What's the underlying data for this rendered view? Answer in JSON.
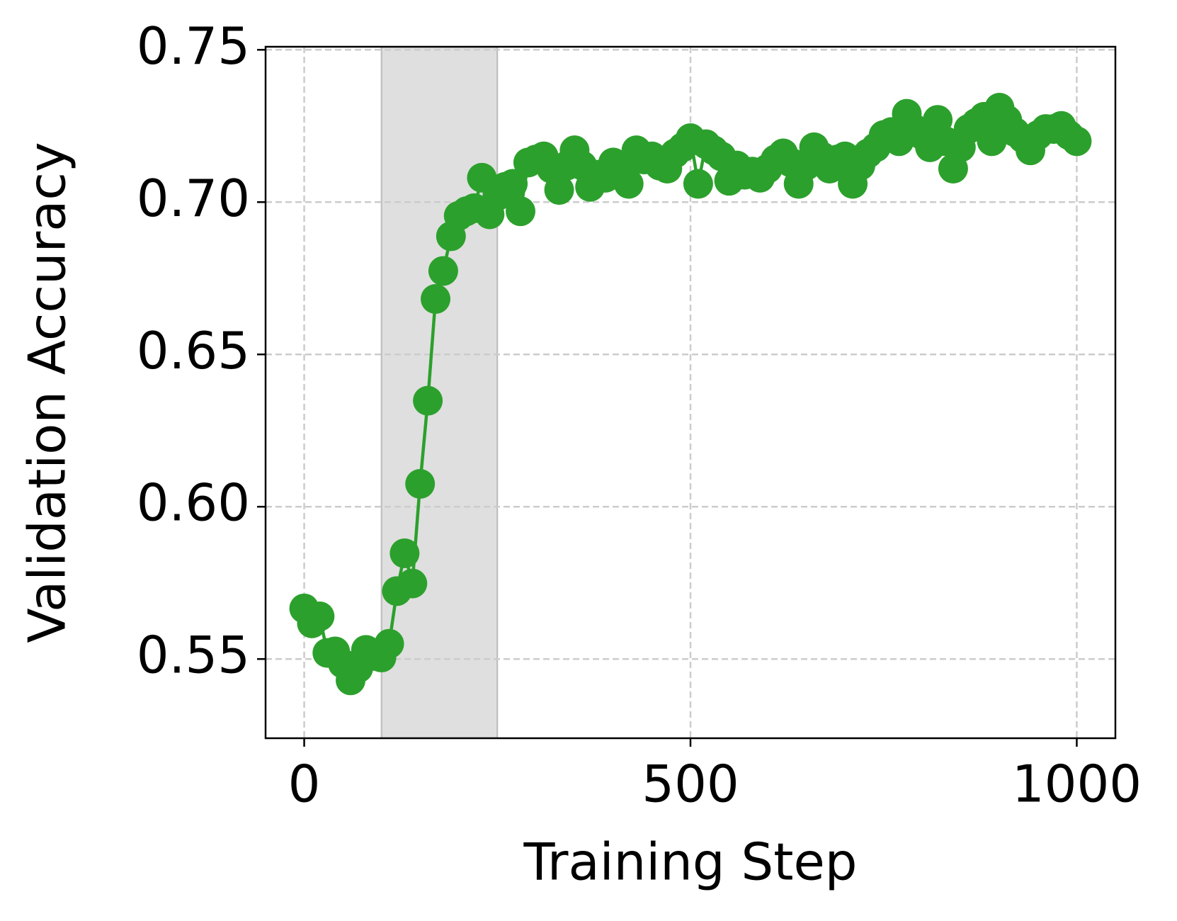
{
  "chart_data": {
    "type": "line",
    "xlabel": "Training Step",
    "ylabel": "Validation Accuracy",
    "x": [
      0,
      10,
      20,
      30,
      40,
      50,
      60,
      70,
      80,
      90,
      100,
      110,
      120,
      130,
      140,
      150,
      160,
      170,
      180,
      190,
      200,
      210,
      220,
      230,
      240,
      250,
      260,
      270,
      280,
      290,
      300,
      310,
      320,
      330,
      340,
      350,
      360,
      370,
      380,
      390,
      400,
      410,
      420,
      430,
      440,
      450,
      460,
      470,
      480,
      490,
      500,
      510,
      520,
      530,
      540,
      550,
      560,
      570,
      580,
      590,
      600,
      610,
      620,
      630,
      640,
      650,
      660,
      670,
      680,
      690,
      700,
      710,
      720,
      730,
      740,
      750,
      760,
      770,
      780,
      790,
      800,
      810,
      820,
      830,
      840,
      850,
      860,
      870,
      880,
      890,
      900,
      910,
      920,
      930,
      940,
      950,
      960,
      970,
      980,
      990,
      1000
    ],
    "series": [
      {
        "color": "#2ca02c",
        "values": [
          0.5666,
          0.5617,
          0.564,
          0.552,
          0.5525,
          0.5485,
          0.543,
          0.547,
          0.553,
          0.551,
          0.5505,
          0.555,
          0.5723,
          0.5847,
          0.5748,
          0.6075,
          0.6348,
          0.6682,
          0.6774,
          0.6888,
          0.6955,
          0.697,
          0.698,
          0.708,
          0.696,
          0.702,
          0.705,
          0.706,
          0.697,
          0.713,
          0.714,
          0.715,
          0.711,
          0.704,
          0.712,
          0.717,
          0.712,
          0.705,
          0.709,
          0.708,
          0.713,
          0.711,
          0.706,
          0.717,
          0.714,
          0.715,
          0.712,
          0.711,
          0.716,
          0.718,
          0.721,
          0.706,
          0.719,
          0.717,
          0.715,
          0.707,
          0.712,
          0.709,
          0.71,
          0.708,
          0.711,
          0.714,
          0.716,
          0.713,
          0.706,
          0.712,
          0.718,
          0.715,
          0.711,
          0.714,
          0.715,
          0.706,
          0.712,
          0.716,
          0.718,
          0.722,
          0.723,
          0.72,
          0.729,
          0.724,
          0.722,
          0.718,
          0.727,
          0.72,
          0.711,
          0.718,
          0.724,
          0.726,
          0.728,
          0.72,
          0.731,
          0.727,
          0.723,
          0.721,
          0.717,
          0.722,
          0.724,
          0.724,
          0.725,
          0.722,
          0.72
        ]
      }
    ],
    "shaded_region": [
      100,
      250
    ],
    "xlim": [
      -50,
      1050
    ],
    "xticks": [
      0,
      500,
      1000
    ],
    "ylim": [
      0.524,
      0.751
    ],
    "yticks": [
      0.55,
      {
        "value": 0.6,
        "label": "0.60"
      },
      0.65,
      {
        "value": 0.7,
        "label": "0.70"
      },
      0.75
    ],
    "grid": true
  }
}
